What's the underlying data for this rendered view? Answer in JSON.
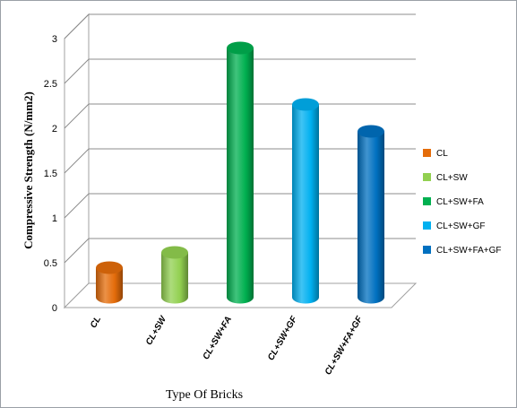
{
  "chart_data": {
    "type": "bar",
    "style": "3d-cylinder",
    "categories": [
      "CL",
      "CL+SW",
      "CL+SW+FA",
      "CL+SW+GF",
      "CL+SW+FA+GF"
    ],
    "values": [
      0.33,
      0.5,
      2.78,
      2.15,
      1.85
    ],
    "colors": [
      "#e46c0a",
      "#92d050",
      "#00b050",
      "#00b0f0",
      "#0070c0"
    ],
    "xlabel": "Type Of Bricks",
    "ylabel": "Compressive Strength (N/mm2)",
    "ylim": [
      0,
      3
    ],
    "yticks": [
      "0",
      "0.5",
      "1",
      "1.5",
      "2",
      "2.5",
      "3"
    ],
    "grid": true,
    "legend": {
      "position": "right",
      "entries": [
        "CL",
        "CL+SW",
        "CL+SW+FA",
        "CL+SW+GF",
        "CL+SW+FA+GF"
      ]
    }
  }
}
